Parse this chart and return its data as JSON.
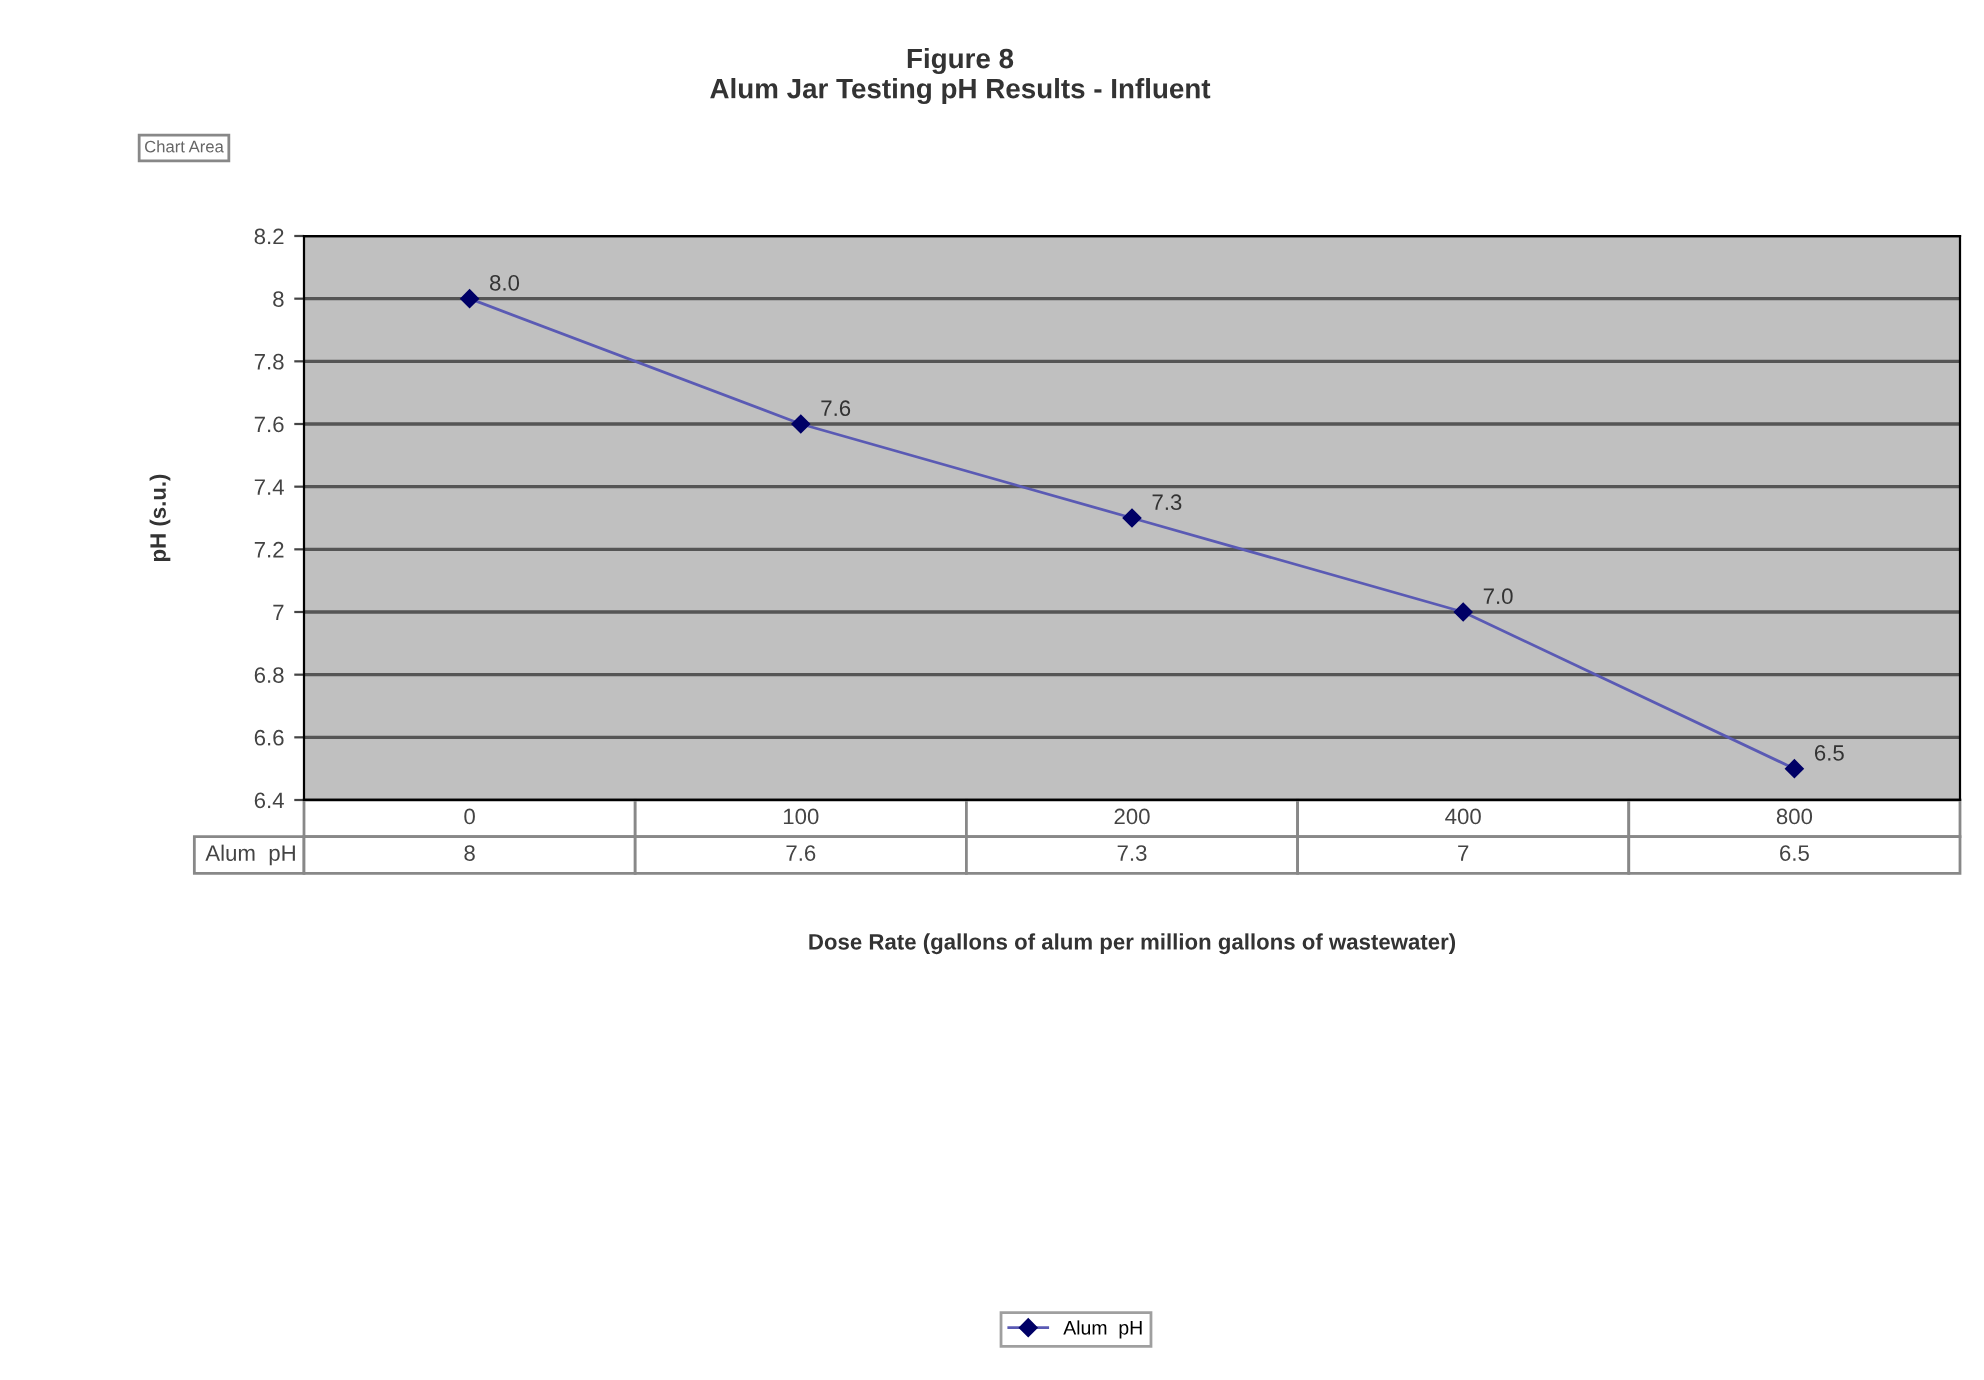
{
  "chart_data": {
    "type": "line",
    "title": "Figure 8\nAlum Jar Testing pH Results - Influent",
    "xlabel": "Dose Rate (gallons of alum per million gallons of wastewater)",
    "ylabel": "pH (s.u.)",
    "categories": [
      "0",
      "100",
      "200",
      "400",
      "800"
    ],
    "series": [
      {
        "name": "Alum  pH",
        "color": "#5a5ab4",
        "values": [
          8,
          7.6,
          7.3,
          7,
          6.5
        ]
      }
    ],
    "ylim": [
      6.4,
      8.2
    ],
    "yticks": [
      6.4,
      6.6,
      6.8,
      7,
      7.2,
      7.4,
      7.6,
      7.8,
      8,
      8.2
    ],
    "grid": "y",
    "marker": "diamond",
    "line_style": "solid",
    "data_labels": true,
    "legend": "bottom",
    "annotations": [
      "Chart Area",
      {
        "text": "8.0",
        "x": "0",
        "y": 8
      },
      {
        "text": "7.6",
        "x": "100",
        "y": 7.6
      },
      {
        "text": "7.3",
        "x": "200",
        "y": 7.3
      },
      {
        "text": "7.0",
        "x": "400",
        "y": 7
      },
      {
        "text": "6.5",
        "x": "800",
        "y": 6.5
      }
    ]
  }
}
